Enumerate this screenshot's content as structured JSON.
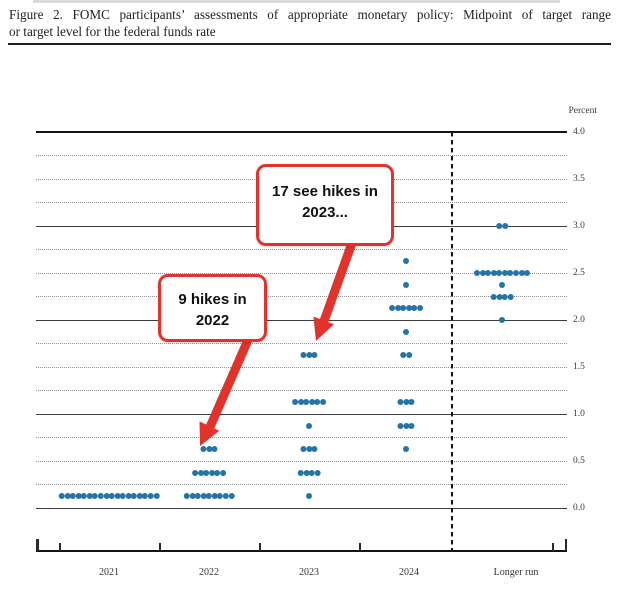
{
  "title": {
    "line1": "Figure 2.  FOMC participants’ assessments of appropriate monetary policy:  Midpoint of target range",
    "line2": "or target level for the federal funds rate"
  },
  "chart_data": {
    "type": "scatter",
    "subtype": "fomc-dot-plot",
    "title": "FOMC participants’ assessments of appropriate monetary policy: Midpoint of target range or target level for the federal funds rate",
    "ylabel": "Percent",
    "ylim": [
      0.0,
      4.0
    ],
    "grid": "solid lines at integers, dotted lines at each 0.25; dashed vertical separator before Longer run",
    "legend_position": "none",
    "x_categories": [
      "2021",
      "2022",
      "2023",
      "2024",
      "Longer run"
    ],
    "y_ticks": [
      {
        "v": 4.0,
        "label": "4.0"
      },
      {
        "v": 3.5,
        "label": "3.5"
      },
      {
        "v": 3.0,
        "label": "3.0"
      },
      {
        "v": 2.5,
        "label": "2.5"
      },
      {
        "v": 2.0,
        "label": "2.0"
      },
      {
        "v": 1.5,
        "label": "1.5"
      },
      {
        "v": 1.0,
        "label": "1.0"
      },
      {
        "v": 0.5,
        "label": "0.5"
      },
      {
        "v": 0.0,
        "label": "0.0"
      }
    ],
    "series": [
      {
        "category": "2021",
        "dots": [
          {
            "rate": 0.125,
            "count": 18
          }
        ]
      },
      {
        "category": "2022",
        "dots": [
          {
            "rate": 0.625,
            "count": 3
          },
          {
            "rate": 0.375,
            "count": 6
          },
          {
            "rate": 0.125,
            "count": 9
          }
        ]
      },
      {
        "category": "2023",
        "dots": [
          {
            "rate": 1.625,
            "count": 3
          },
          {
            "rate": 1.125,
            "count": 6
          },
          {
            "rate": 0.875,
            "count": 1
          },
          {
            "rate": 0.625,
            "count": 3
          },
          {
            "rate": 0.375,
            "count": 4
          },
          {
            "rate": 0.125,
            "count": 1
          }
        ]
      },
      {
        "category": "2024",
        "dots": [
          {
            "rate": 2.625,
            "count": 1
          },
          {
            "rate": 2.375,
            "count": 1
          },
          {
            "rate": 2.125,
            "count": 6
          },
          {
            "rate": 1.875,
            "count": 1
          },
          {
            "rate": 1.625,
            "count": 2
          },
          {
            "rate": 1.125,
            "count": 3
          },
          {
            "rate": 0.875,
            "count": 3
          },
          {
            "rate": 0.625,
            "count": 1
          }
        ]
      },
      {
        "category": "Longer run",
        "dots": [
          {
            "rate": 3.0,
            "count": 2
          },
          {
            "rate": 2.5,
            "count": 10
          },
          {
            "rate": 2.375,
            "count": 1
          },
          {
            "rate": 2.25,
            "count": 4
          },
          {
            "rate": 2.0,
            "count": 1
          }
        ]
      }
    ],
    "dot_color": "#2673a5",
    "accent_color": "#e0332b",
    "annotations": [
      {
        "line1": "17 see hikes in",
        "line2": "2023...",
        "points_to": "2023 dots at 1.625"
      },
      {
        "line1": "9 hikes in",
        "line2": "2022",
        "points_to": "2022 dots at 0.625"
      }
    ]
  }
}
